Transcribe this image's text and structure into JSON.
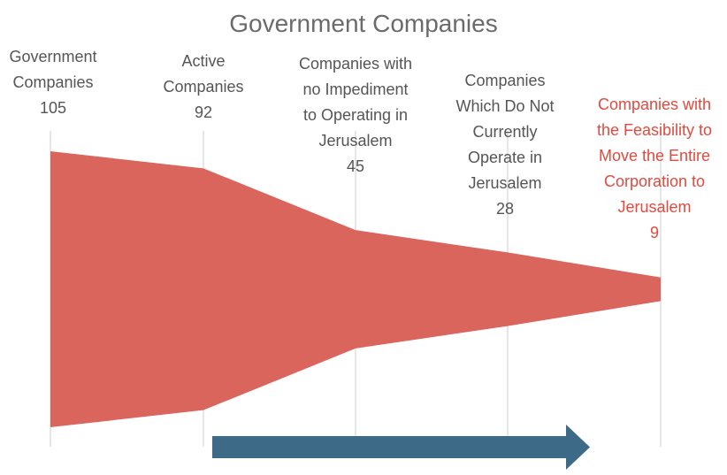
{
  "chart_data": {
    "type": "area",
    "title": "Government Companies",
    "categories": [
      [
        "Government",
        "Companies"
      ],
      [
        "Active",
        "Companies"
      ],
      [
        "Companies with",
        "no Impediment",
        "to Operating in",
        "Jerusalem"
      ],
      [
        "Companies",
        "Which Do Not",
        "Currently",
        "Operate in",
        "Jerusalem"
      ],
      [
        "Companies with",
        "the Feasibility to",
        "Move the Entire",
        "Corporation to",
        "Jerusalem"
      ]
    ],
    "values": [
      105,
      92,
      45,
      28,
      9
    ],
    "value_labels": [
      "105",
      "92",
      "45",
      "28",
      "9"
    ],
    "highlight_index": 4,
    "grid": true,
    "legend": "none"
  },
  "colors": {
    "funnel": "#d9655c",
    "label": "#555555",
    "highlight": "#e04a3f",
    "arrow": "#3d6b87",
    "title": "#6b6b6b",
    "grid": "#dddddd"
  },
  "icons": {
    "arrow": "right-arrow-icon"
  }
}
